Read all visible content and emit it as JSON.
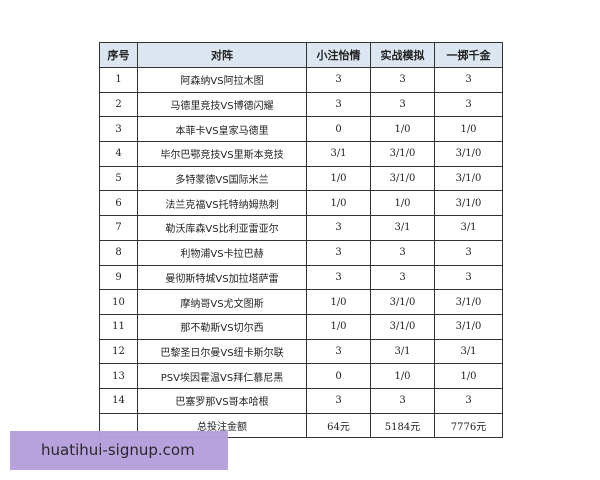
{
  "headers": [
    "序号",
    "对阵",
    "小注怡情",
    "实战模拟",
    "一掷千金"
  ],
  "rows": [
    [
      "1",
      "阿森纳VS阿拉木图",
      "3",
      "3",
      "3"
    ],
    [
      "2",
      "马德里竞技VS博德闪耀",
      "3",
      "3",
      "3"
    ],
    [
      "3",
      "本菲卡VS皇家马德里",
      "0",
      "1/0",
      "1/0"
    ],
    [
      "4",
      "毕尔巴鄂竞技VS里斯本竞技",
      "3/1",
      "3/1/0",
      "3/1/0"
    ],
    [
      "5",
      "多特蒙德VS国际米兰",
      "1/0",
      "3/1/0",
      "3/1/0"
    ],
    [
      "6",
      "法兰克福VS托特纳姆热刺",
      "1/0",
      "1/0",
      "3/1/0"
    ],
    [
      "7",
      "勒沃库森VS比利亚雷亚尔",
      "3",
      "3/1",
      "3/1"
    ],
    [
      "8",
      "利物浦VS卡拉巴赫",
      "3",
      "3",
      "3"
    ],
    [
      "9",
      "曼彻斯特城VS加拉塔萨雷",
      "3",
      "3",
      "3"
    ],
    [
      "10",
      "摩纳哥VS尤文图斯",
      "1/0",
      "3/1/0",
      "3/1/0"
    ],
    [
      "11",
      "那不勒斯VS切尔西",
      "1/0",
      "3/1/0",
      "3/1/0"
    ],
    [
      "12",
      "巴黎圣日尔曼VS纽卡斯尔联",
      "3",
      "3/1",
      "3/1"
    ],
    [
      "13",
      "PSV埃因霍温VS拜仁慕尼黑",
      "0",
      "1/0",
      "1/0"
    ],
    [
      "14",
      "巴塞罗那VS哥本哈根",
      "3",
      "3",
      "3"
    ]
  ],
  "total": {
    "label": "总投注金额",
    "values": [
      "64元",
      "5184元",
      "7776元"
    ]
  },
  "watermark": "huatihui-signup.com"
}
